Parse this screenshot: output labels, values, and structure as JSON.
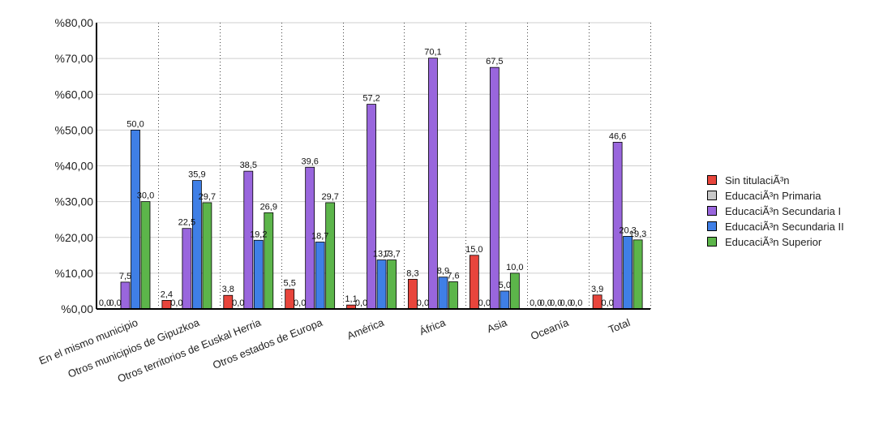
{
  "chart_data": {
    "type": "bar",
    "title": "",
    "xlabel": "",
    "ylabel": "",
    "ylim": [
      0,
      80
    ],
    "yticks": [
      "%0,00",
      "%10,00",
      "%20,00",
      "%30,00",
      "%40,00",
      "%50,00",
      "%60,00",
      "%70,00",
      "%80,00"
    ],
    "grid": "horizontal gridlines and dotted vertical category separators",
    "legend_position": "right",
    "categories": [
      "En el mismo municipio",
      "Otros municipios de Gipuzkoa",
      "Otros territorios de Euskal Herria",
      "Otros estados de Europa",
      "América",
      "África",
      "Asia",
      "Oceanía",
      "Total"
    ],
    "series": [
      {
        "name": "Sin titulaciÃ³n",
        "color": "#e8453c",
        "values": [
          0.0,
          2.4,
          3.8,
          5.5,
          1.1,
          8.3,
          15.0,
          0.0,
          3.9
        ],
        "labels": [
          "0,0",
          "2,4",
          "3,8",
          "5,5",
          "1,1",
          "8,3",
          "15,0",
          "0,0",
          "3,9"
        ]
      },
      {
        "name": "EducaciÃ³n Primaria",
        "color": "#c8c8c8",
        "values": [
          0.0,
          0.0,
          0.0,
          0.0,
          0.0,
          0.0,
          0.0,
          0.0,
          0.0
        ],
        "labels": [
          "0,0",
          "0,0",
          "0,0",
          "0,0",
          "0,0",
          "0,0",
          "0,0",
          "0,0",
          "0,0"
        ]
      },
      {
        "name": "EducaciÃ³n Secundaria I",
        "color": "#9966dd",
        "values": [
          7.5,
          22.5,
          38.5,
          39.6,
          57.2,
          70.1,
          67.5,
          0.0,
          46.6
        ],
        "labels": [
          "7,5",
          "22,5",
          "38,5",
          "39,6",
          "57,2",
          "70,1",
          "67,5",
          "0,0",
          "46,6"
        ]
      },
      {
        "name": "EducaciÃ³n Secundaria II",
        "color": "#3f7fe6",
        "values": [
          50.0,
          35.9,
          19.2,
          18.7,
          13.7,
          8.9,
          5.0,
          0.0,
          20.3
        ],
        "labels": [
          "50,0",
          "35,9",
          "19,2",
          "18,7",
          "13,7",
          "8,9",
          "5,0",
          "0,0",
          "20,3"
        ]
      },
      {
        "name": "EducaciÃ³n Superior",
        "color": "#5cb54a",
        "values": [
          30.0,
          29.7,
          26.9,
          29.7,
          13.7,
          7.6,
          10.0,
          0.0,
          19.3
        ],
        "labels": [
          "30,0",
          "29,7",
          "26,9",
          "29,7",
          "13,7",
          "7,6",
          "10,0",
          "0,0",
          "19,3"
        ]
      }
    ]
  }
}
